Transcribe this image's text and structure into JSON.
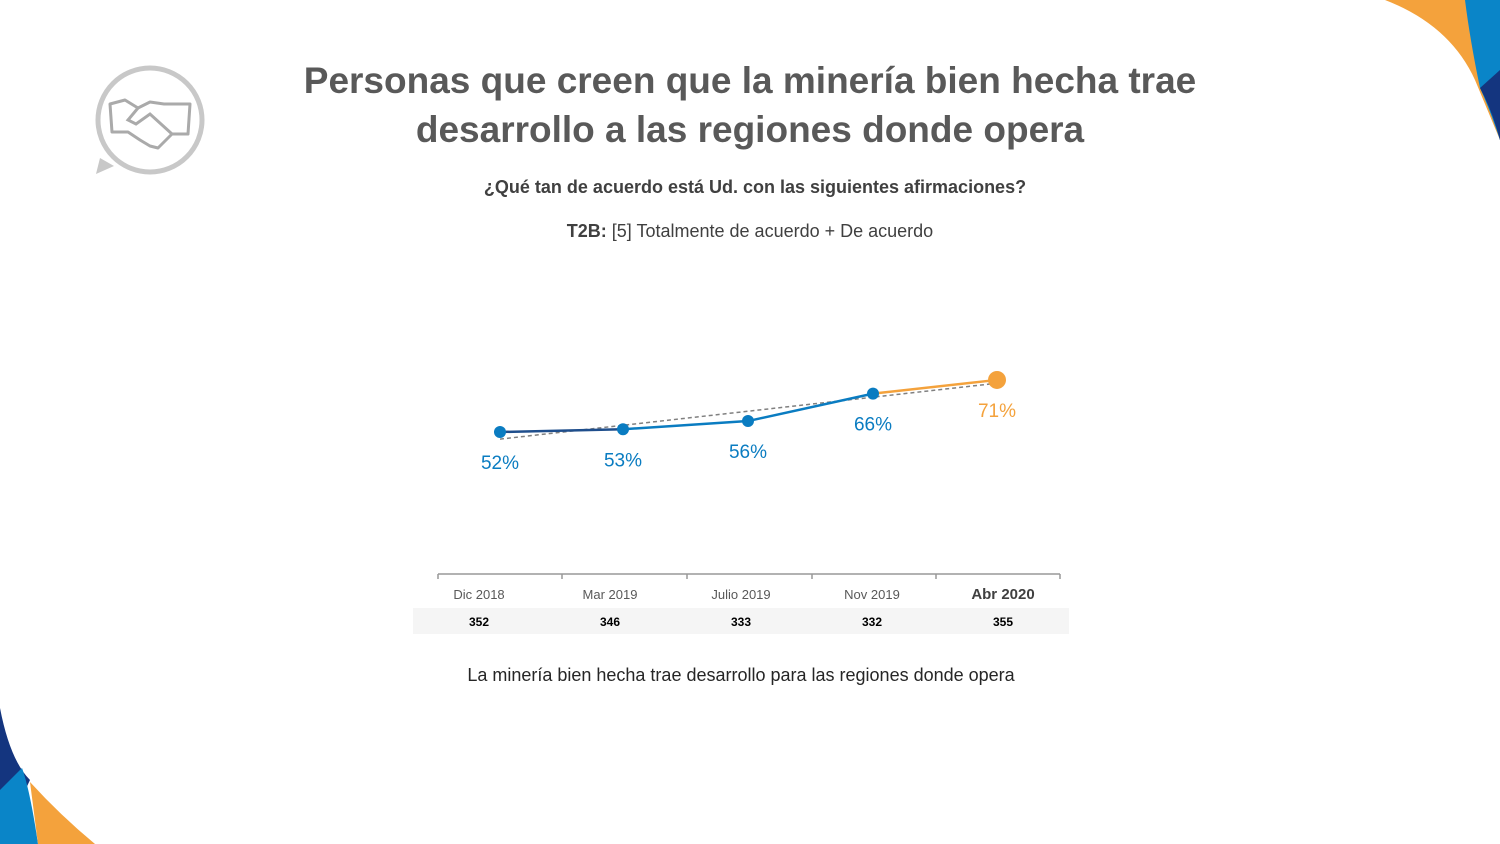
{
  "header": {
    "title_line1": "Personas que creen que la minería bien hecha trae",
    "title_line2": "desarrollo a las regiones donde opera",
    "question": "¿Qué tan de acuerdo está Ud. con las siguientes afirmaciones?",
    "t2b_label": "T2B:",
    "t2b_text": " [5] Totalmente de acuerdo + De acuerdo",
    "icon": "handshake-icon"
  },
  "chart_data": {
    "type": "line",
    "categories": [
      "Dic 2018",
      "Mar 2019",
      "Julio 2019",
      "Nov 2019",
      "Abr 2020"
    ],
    "values": [
      52,
      53,
      56,
      66,
      71
    ],
    "data_labels": [
      "52%",
      "53%",
      "56%",
      "66%",
      "71%"
    ],
    "sample_sizes": [
      "352",
      "346",
      "333",
      "332",
      "355"
    ],
    "trendline": "linear",
    "highlight_index": 4,
    "colors": {
      "main": "#0a7cc1",
      "dark": "#1f4e8c",
      "highlight": "#f4a23c",
      "trend": "#808080"
    }
  },
  "caption": "La minería bien hecha trae desarrollo para las regiones donde opera"
}
